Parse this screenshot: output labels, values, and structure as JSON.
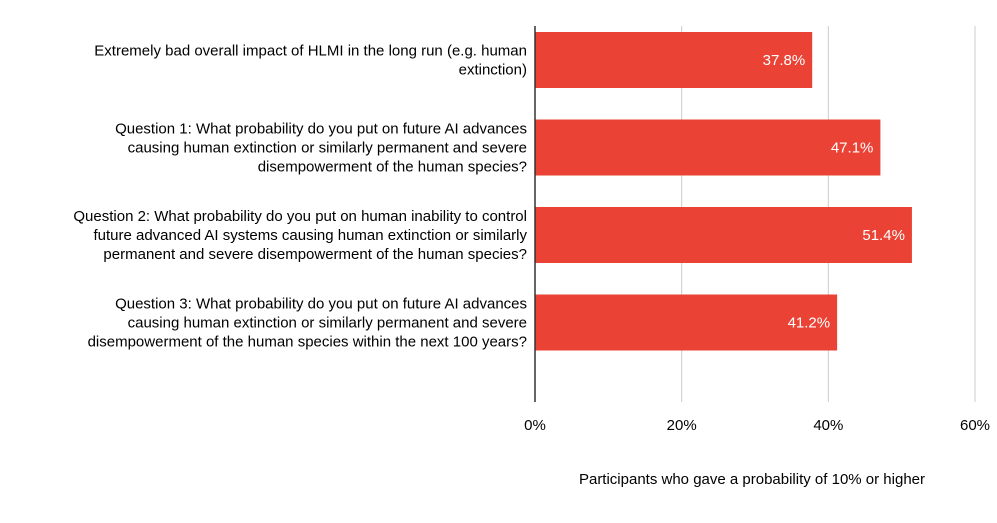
{
  "chart_data": {
    "type": "bar",
    "orientation": "horizontal",
    "categories": [
      [
        "Extremely bad overall impact of HLMI in the long run (e.g. human",
        "extinction)"
      ],
      [
        "Question 1: What probability do you put on future AI advances",
        "causing human extinction or similarly permanent and severe",
        "disempowerment of the human species?"
      ],
      [
        "Question 2: What probability do you put on human inability to control",
        "future advanced AI systems causing human extinction or similarly",
        "permanent and severe disempowerment of the human species?"
      ],
      [
        "Question 3: What probability do you put on future AI advances",
        "causing human extinction or similarly permanent and severe",
        "disempowerment of the human species within the next 100 years?"
      ]
    ],
    "values": [
      37.8,
      47.1,
      51.4,
      41.2
    ],
    "data_labels": [
      "37.8%",
      "47.1%",
      "51.4%",
      "41.2%"
    ],
    "xlabel": "Participants who gave a probability of 10% or higher",
    "ylabel": "",
    "xlim": [
      0,
      60
    ],
    "x_ticks": [
      0,
      20,
      40,
      60
    ],
    "x_tick_labels": [
      "0%",
      "20%",
      "40%",
      "60%"
    ],
    "grid": true,
    "legend": "none",
    "bar_color": "#ea4335",
    "label_color": "#ffffff",
    "grid_color": "#cccccc",
    "axis_color": "#333333",
    "text_color": "#000000"
  }
}
